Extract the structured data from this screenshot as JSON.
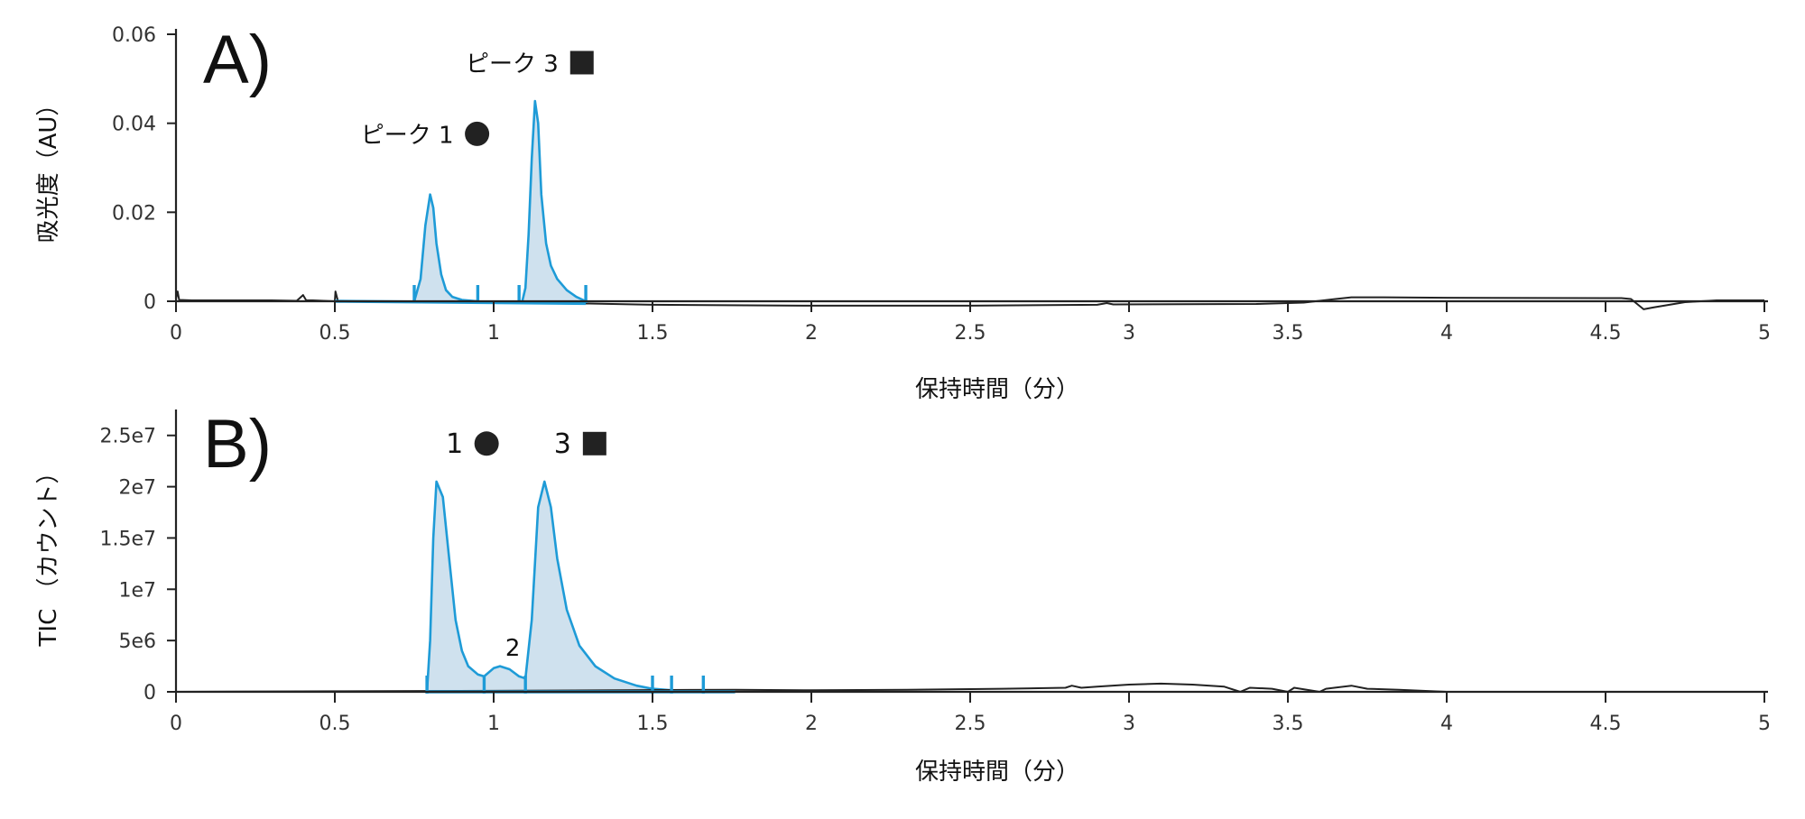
{
  "colors": {
    "trace": "#222222",
    "peak_line": "#1e9bd7",
    "peak_fill": "#cfe1ee",
    "axis": "#222222",
    "marker": "#222222"
  },
  "chart_data": [
    {
      "type": "line",
      "panel_label": "A)",
      "xlabel": "保持時間（分）",
      "ylabel": "吸光度（AU）",
      "xlim": [
        0,
        5
      ],
      "ylim": [
        0,
        0.06
      ],
      "x_ticks": [
        0,
        0.5,
        1,
        1.5,
        2,
        2.5,
        3,
        3.5,
        4,
        4.5,
        5
      ],
      "x_tick_labels": [
        "0",
        "0.5",
        "1",
        "1.5",
        "2",
        "2.5",
        "3",
        "3.5",
        "4",
        "4.5",
        "5"
      ],
      "y_ticks": [
        0,
        0.02,
        0.04,
        0.06
      ],
      "y_tick_labels": [
        "0",
        "0.02",
        "0.04",
        "0.06"
      ],
      "grid": false,
      "series": [
        {
          "role": "trace",
          "x": [
            0,
            0.005,
            0.01,
            0.05,
            0.3,
            0.38,
            0.4,
            0.41,
            0.43,
            0.5,
            0.502,
            0.51,
            1.3,
            1.5,
            2.0,
            2.5,
            2.9,
            2.93,
            2.95,
            3.4,
            3.55,
            3.65,
            3.7,
            3.8,
            4.0,
            4.55,
            4.58,
            4.62,
            4.65,
            4.75,
            4.85,
            5.0
          ],
          "y": [
            0.0005,
            0.0022,
            0.0003,
            0.0002,
            0.0002,
            0.0001,
            0.0014,
            0.0002,
            0.0002,
            0.0,
            0.0022,
            0.0,
            -0.0005,
            -0.0008,
            -0.001,
            -0.001,
            -0.0008,
            -0.0004,
            -0.0007,
            -0.0006,
            -0.0003,
            0.0005,
            0.0009,
            0.0009,
            0.0008,
            0.0007,
            0.0005,
            -0.0018,
            -0.0014,
            -0.0002,
            0.0002,
            0.0002
          ]
        },
        {
          "role": "peak",
          "x": [
            0.75,
            0.77,
            0.785,
            0.8,
            0.81,
            0.82,
            0.835,
            0.85,
            0.87,
            0.9,
            0.95
          ],
          "y": [
            0.0,
            0.005,
            0.017,
            0.024,
            0.021,
            0.013,
            0.006,
            0.0025,
            0.001,
            0.0003,
            0.0
          ]
        },
        {
          "role": "peak",
          "x": [
            1.09,
            1.1,
            1.11,
            1.12,
            1.13,
            1.14,
            1.15,
            1.165,
            1.18,
            1.2,
            1.23,
            1.26,
            1.29
          ],
          "y": [
            0.0,
            0.003,
            0.015,
            0.032,
            0.045,
            0.04,
            0.024,
            0.013,
            0.008,
            0.005,
            0.0025,
            0.001,
            0.0
          ]
        }
      ],
      "baseline": {
        "x": [
          0.5,
          1.29
        ],
        "y": [
          0.0,
          -0.0005
        ]
      },
      "integration_marks_x": [
        0.75,
        0.95,
        1.08,
        1.29
      ],
      "annotations": [
        {
          "text": "ピーク 1",
          "marker": "circle",
          "x": 0.8,
          "y": 0.036
        },
        {
          "text": "ピーク 3",
          "marker": "square",
          "x": 1.13,
          "y": 0.052
        }
      ]
    },
    {
      "type": "line",
      "panel_label": "B)",
      "xlabel": "保持時間（分）",
      "ylabel": "TIC （カウント）",
      "xlim": [
        0,
        5
      ],
      "ylim": [
        0,
        27000000
      ],
      "x_ticks": [
        0,
        0.5,
        1,
        1.5,
        2,
        2.5,
        3,
        3.5,
        4,
        4.5,
        5
      ],
      "x_tick_labels": [
        "0",
        "0.5",
        "1",
        "1.5",
        "2",
        "2.5",
        "3",
        "3.5",
        "4",
        "4.5",
        "5"
      ],
      "y_ticks": [
        0,
        5000000,
        10000000,
        15000000,
        20000000,
        25000000
      ],
      "y_tick_labels": [
        "0",
        "5e6",
        "1e7",
        "1.5e7",
        "2e7",
        "2.5e7"
      ],
      "grid": false,
      "series": [
        {
          "role": "trace",
          "x": [
            0,
            0.5,
            1.0,
            1.76,
            2.0,
            2.3,
            2.6,
            2.8,
            2.82,
            2.85,
            2.9,
            3.0,
            3.1,
            3.2,
            3.3,
            3.35,
            3.38,
            3.45,
            3.5,
            3.52,
            3.6,
            3.62,
            3.7,
            3.75,
            3.85,
            4.0
          ],
          "y": [
            0,
            50000,
            100000,
            200000,
            150000,
            200000,
            300000,
            400000,
            600000,
            400000,
            500000,
            700000,
            800000,
            700000,
            500000,
            0,
            400000,
            300000,
            0,
            400000,
            0,
            300000,
            600000,
            300000,
            200000,
            0
          ]
        },
        {
          "role": "peak",
          "x": [
            0.79,
            0.8,
            0.81,
            0.82,
            0.84,
            0.86,
            0.88,
            0.9,
            0.92,
            0.95,
            0.97
          ],
          "y": [
            0,
            5000000,
            15000000,
            20500000,
            19000000,
            13000000,
            7000000,
            4000000,
            2500000,
            1700000,
            1500000
          ]
        },
        {
          "role": "peak",
          "x": [
            0.97,
            1.0,
            1.02,
            1.05,
            1.08,
            1.1
          ],
          "y": [
            1500000,
            2300000,
            2500000,
            2200000,
            1500000,
            1300000
          ]
        },
        {
          "role": "peak",
          "x": [
            1.1,
            1.12,
            1.14,
            1.16,
            1.18,
            1.2,
            1.23,
            1.27,
            1.32,
            1.38,
            1.45,
            1.5,
            1.56,
            1.66,
            1.76
          ],
          "y": [
            1300000,
            7000000,
            18000000,
            20500000,
            18000000,
            13000000,
            8000000,
            4500000,
            2500000,
            1300000,
            600000,
            300000,
            150000,
            50000,
            0
          ]
        }
      ],
      "baseline": {
        "x": [
          0.79,
          1.76
        ],
        "y": [
          0,
          0
        ]
      },
      "integration_marks_x": [
        0.79,
        0.97,
        1.1,
        1.5,
        1.56,
        1.66
      ],
      "annotations": [
        {
          "text": "1",
          "marker": "circle",
          "x": 0.83,
          "y": 23500000
        },
        {
          "text": "3",
          "marker": "square",
          "x": 1.17,
          "y": 23500000
        },
        {
          "text": "2",
          "x": 1.06,
          "y": 3500000
        }
      ]
    }
  ]
}
